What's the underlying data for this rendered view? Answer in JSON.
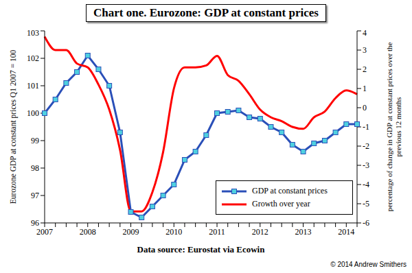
{
  "chart_data": {
    "type": "line",
    "title": "Chart one. Eurozone: GDP at constant prices",
    "x_label": "Data source: Eurostat via Ecowin",
    "y_label": "Eurozone GDP at constant prices Q1 2007 = 100",
    "y2_label": "percentage of change in GDP at constant prices over the previous 12 months",
    "annotations": [
      "© 2014 Andrew Smithers"
    ],
    "categories": [
      "2007",
      null,
      null,
      null,
      "2008",
      null,
      null,
      null,
      "2009",
      null,
      null,
      null,
      "2010",
      null,
      null,
      null,
      "2011",
      null,
      null,
      null,
      "2012",
      null,
      null,
      null,
      "2013",
      null,
      null,
      null,
      "2014",
      null
    ],
    "series": [
      {
        "name": "GDP at constant prices",
        "color": "#2a4fb8",
        "marker": "square",
        "values": [
          100.0,
          100.5,
          101.1,
          101.5,
          102.1,
          101.6,
          101.0,
          99.3,
          96.4,
          96.2,
          96.6,
          97.0,
          97.4,
          98.3,
          98.6,
          99.2,
          100.0,
          100.05,
          100.1,
          99.85,
          99.8,
          99.5,
          99.3,
          98.85,
          98.6,
          98.9,
          99.0,
          99.3,
          99.6,
          99.6
        ]
      },
      {
        "name": "Growth over year",
        "color": "#ff0000",
        "axis": "y2",
        "values": [
          3.7,
          3.0,
          3.0,
          2.3,
          2.1,
          1.2,
          -0.1,
          -2.2,
          -5.4,
          -5.4,
          -4.4,
          -2.3,
          1.0,
          2.1,
          2.1,
          2.2,
          2.7,
          1.7,
          1.4,
          0.7,
          -0.1,
          -0.5,
          -0.7,
          -1.0,
          -1.1,
          -0.5,
          -0.2,
          0.5,
          0.9,
          0.7
        ]
      }
    ],
    "ylim": [
      96,
      103
    ],
    "yticks": [
      96,
      97,
      98,
      99,
      100,
      101,
      102,
      103
    ],
    "y2lim": [
      -6,
      4
    ],
    "y2ticks": [
      -6,
      -5,
      -4,
      -3,
      -2,
      -1,
      0,
      1,
      2,
      3,
      4
    ],
    "grid": false,
    "legend": "lower right"
  }
}
